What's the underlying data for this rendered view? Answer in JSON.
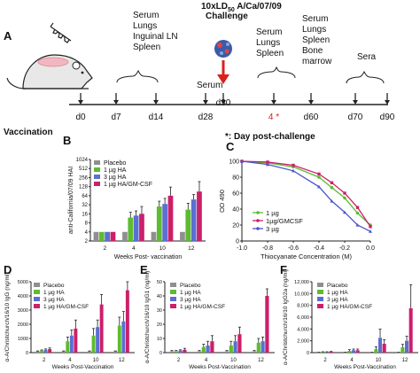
{
  "panel_labels": {
    "a": "A",
    "b": "B",
    "c": "C",
    "d": "D",
    "e": "E",
    "f": "F"
  },
  "timeline": {
    "challenge_line1": "10xLD",
    "challenge_sub": "50",
    "challenge_rest": " A/Ca/07/09",
    "challenge_line2": "Challenge",
    "days": [
      "d0",
      "d7",
      "d14",
      "d28",
      "d30",
      "4 *",
      "d60",
      "d70",
      "d90"
    ],
    "vaccination_label": "Vaccination",
    "note": "*: Day post-challenge",
    "sample_groups": [
      {
        "lines": [
          "Serum",
          "Lungs",
          "Inguinal LN",
          "Spleen"
        ]
      },
      {
        "lines": [
          "Serum"
        ]
      },
      {
        "lines": [
          "Serum",
          "Lungs",
          "Spleen"
        ]
      },
      {
        "lines": [
          "Serum",
          "Lungs",
          "Spleen",
          "Bone",
          "marrow"
        ]
      },
      {
        "lines": [
          "Sera"
        ]
      }
    ],
    "colors": {
      "challenge_arrow": "#d9221c",
      "highlight_day": "#d9221c"
    }
  },
  "chart_data": [
    {
      "panel": "B",
      "type": "bar",
      "ylabel": "anti-California/07/09 HAI",
      "xlabel": "Weeks Post- vaccination",
      "categories": [
        "2",
        "4",
        "10",
        "12"
      ],
      "y_ticks": [
        "2",
        "4",
        "8",
        "16",
        "32",
        "64",
        "128",
        "256",
        "512",
        "1024"
      ],
      "scale": "log2",
      "series": [
        {
          "name": "Placebo",
          "color": "#8f8f8f",
          "values": [
            4,
            4,
            4,
            4
          ],
          "err": [
            0,
            0,
            0,
            0
          ]
        },
        {
          "name": "1 µg HA",
          "color": "#5dbb2f",
          "values": [
            4,
            12,
            28,
            22
          ],
          "err": [
            0,
            6,
            14,
            14
          ]
        },
        {
          "name": "3 µg HA",
          "color": "#5b6fd1",
          "values": [
            4,
            14,
            34,
            48
          ],
          "err": [
            0,
            6,
            18,
            22
          ]
        },
        {
          "name": "1 µg HA/GM-CSF",
          "color": "#cc1f6a",
          "values": [
            4,
            16,
            64,
            88
          ],
          "err": [
            0,
            12,
            60,
            100
          ]
        }
      ]
    },
    {
      "panel": "C",
      "type": "line",
      "ylabel": "OD 490",
      "xlabel": "Thiocyanate Concentration (M)",
      "xlim": [
        -1.0,
        0.0
      ],
      "ylim": [
        0,
        100
      ],
      "x_ticks": [
        "-1.0",
        "-0.8",
        "-0.6",
        "-0.4",
        "-0.2",
        "0.0"
      ],
      "y_ticks": [
        "0",
        "20",
        "40",
        "60",
        "80",
        "100"
      ],
      "series": [
        {
          "name": "1 µg",
          "color": "#5dbb2f",
          "x": [
            -1.0,
            -0.8,
            -0.6,
            -0.4,
            -0.3,
            -0.2,
            -0.1,
            0.0
          ],
          "y": [
            100,
            98,
            93,
            80,
            67,
            54,
            35,
            20
          ]
        },
        {
          "name": "1µg/GMCSF",
          "color": "#cc1f6a",
          "x": [
            -1.0,
            -0.8,
            -0.6,
            -0.4,
            -0.3,
            -0.2,
            -0.1,
            0.0
          ],
          "y": [
            100,
            99,
            95,
            84,
            73,
            60,
            42,
            18
          ]
        },
        {
          "name": "3 µg",
          "color": "#4a55c8",
          "x": [
            -1.0,
            -0.8,
            -0.6,
            -0.4,
            -0.3,
            -0.2,
            -0.1,
            0.0
          ],
          "y": [
            100,
            96,
            88,
            68,
            50,
            36,
            20,
            12
          ]
        }
      ]
    },
    {
      "panel": "D",
      "type": "bar",
      "ylabel": "α-A/Christchurch/16/10 IgG (ng/ml)",
      "xlabel": "Weeks Post-Vaccination",
      "categories": [
        "2",
        "4",
        "10",
        "12"
      ],
      "ylim": [
        0,
        5000
      ],
      "y_ticks": [
        "0",
        "1000",
        "2000",
        "3000",
        "4000",
        "5000"
      ],
      "series": [
        {
          "name": "Placebo",
          "color": "#8f8f8f",
          "values": [
            100,
            100,
            100,
            100
          ],
          "err": [
            20,
            20,
            20,
            20
          ]
        },
        {
          "name": "1 µg HA",
          "color": "#5dbb2f",
          "values": [
            150,
            800,
            1200,
            1900
          ],
          "err": [
            40,
            300,
            500,
            600
          ]
        },
        {
          "name": "3 µg HA",
          "color": "#5b6fd1",
          "values": [
            200,
            1200,
            1800,
            2200
          ],
          "err": [
            60,
            400,
            500,
            700
          ]
        },
        {
          "name": "1 µg HA/GM-CSF",
          "color": "#cc1f6a",
          "values": [
            250,
            1700,
            3400,
            4400
          ],
          "err": [
            80,
            600,
            700,
            600
          ]
        }
      ]
    },
    {
      "panel": "E",
      "type": "bar",
      "ylabel": "α-A/Christchurch/16/10 IgG1 (ng/ml)",
      "xlabel": "Weeks Post-Vaccination",
      "categories": [
        "2",
        "4",
        "10",
        "12"
      ],
      "ylim": [
        0,
        50
      ],
      "y_ticks": [
        "0",
        "10",
        "20",
        "30",
        "40",
        "50"
      ],
      "series": [
        {
          "name": "Placebo",
          "color": "#8f8f8f",
          "values": [
            1,
            1,
            1,
            1
          ],
          "err": [
            0.5,
            0.5,
            0.5,
            0.5
          ]
        },
        {
          "name": "1 µg HA",
          "color": "#5dbb2f",
          "values": [
            1,
            4,
            5,
            7
          ],
          "err": [
            0.5,
            2,
            3,
            3
          ]
        },
        {
          "name": "3 µg HA",
          "color": "#5b6fd1",
          "values": [
            1.5,
            5,
            8,
            8
          ],
          "err": [
            0.5,
            3,
            4,
            3
          ]
        },
        {
          "name": "1 µg HA/GM-CSF",
          "color": "#cc1f6a",
          "values": [
            2,
            8,
            13,
            40
          ],
          "err": [
            1,
            4,
            5,
            5
          ]
        }
      ]
    },
    {
      "panel": "F",
      "type": "bar",
      "ylabel": "α-A/Christchurch/16/10 IgG2a (ng/ml)",
      "xlabel": "Weeks Post-Vaccination",
      "categories": [
        "2",
        "4",
        "10",
        "12"
      ],
      "ylim": [
        0,
        12000
      ],
      "y_ticks": [
        "0",
        "2,000",
        "4,000",
        "6,000",
        "8,000",
        "10,000",
        "12,000"
      ],
      "series": [
        {
          "name": "Placebo",
          "color": "#8f8f8f",
          "values": [
            50,
            50,
            50,
            50
          ],
          "err": [
            20,
            20,
            20,
            20
          ]
        },
        {
          "name": "1 µg HA",
          "color": "#5dbb2f",
          "values": [
            100,
            300,
            600,
            900
          ],
          "err": [
            50,
            200,
            400,
            500
          ]
        },
        {
          "name": "3 µg HA",
          "color": "#5b6fd1",
          "values": [
            100,
            400,
            2500,
            2000
          ],
          "err": [
            50,
            200,
            1500,
            800
          ]
        },
        {
          "name": "1 µg HA/GM-CSF",
          "color": "#cc1f6a",
          "values": [
            150,
            400,
            1500,
            7500
          ],
          "err": [
            50,
            200,
            700,
            4000
          ]
        }
      ]
    }
  ]
}
